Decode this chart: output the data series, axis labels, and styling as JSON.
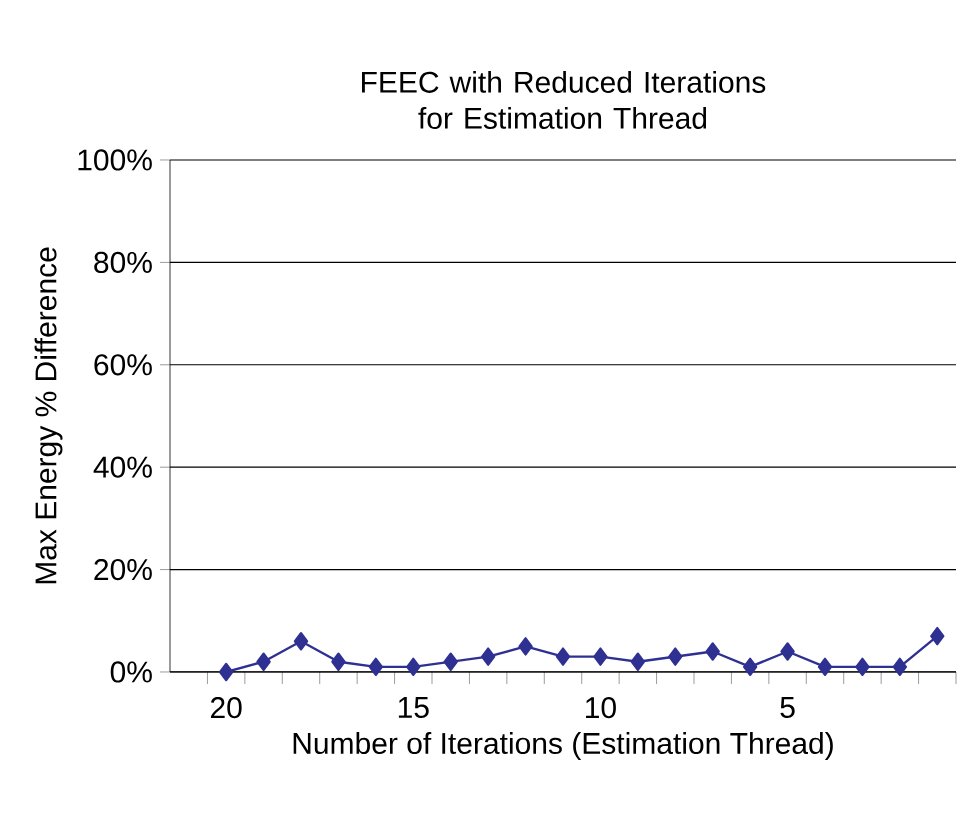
{
  "chart_data": {
    "type": "line",
    "title": "FEEC with Reduced Iterations for Estimation Thread",
    "xlabel": "Number of Iterations (Estimation Thread)",
    "ylabel": "Max Energy % Difference",
    "categories": [
      "20",
      null,
      null,
      null,
      null,
      "15",
      null,
      null,
      null,
      null,
      "10",
      null,
      null,
      null,
      null,
      "5",
      null,
      null,
      null,
      null
    ],
    "series": [
      {
        "color": "#2e3192",
        "values": [
          0,
          2,
          6,
          2,
          1,
          1,
          2,
          3,
          5,
          3,
          3,
          2,
          3,
          4,
          1,
          4,
          1,
          1,
          1,
          7
        ]
      }
    ],
    "ylim": [
      0,
      100
    ],
    "yticks": [
      {
        "value": 0,
        "label": "0%"
      },
      {
        "value": 20,
        "label": "20%"
      },
      {
        "value": 40,
        "label": "40%"
      },
      {
        "value": 60,
        "label": "60%"
      },
      {
        "value": 80,
        "label": "80%"
      },
      {
        "value": 100,
        "label": "100%"
      }
    ],
    "grid": "y",
    "marker": "diamond",
    "line_style": "solid"
  }
}
